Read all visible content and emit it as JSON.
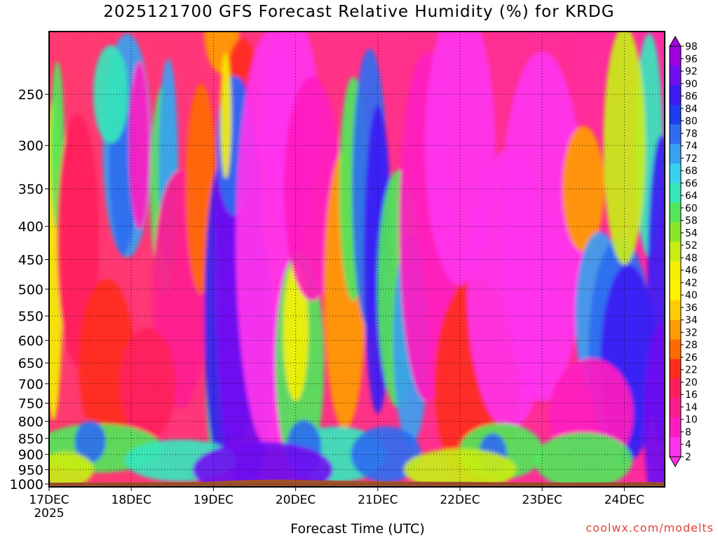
{
  "chart_data": {
    "type": "heatmap",
    "title": "2025121700 GFS Forecast Relative Humidity (%) for KRDG",
    "xlabel": "Forecast Time (UTC)",
    "ylabel": "",
    "credit": "coolwx.com/modelts",
    "x_ticks": [
      "17DEC",
      "18DEC",
      "19DEC",
      "20DEC",
      "21DEC",
      "22DEC",
      "23DEC",
      "24DEC"
    ],
    "x_year_label": "2025",
    "y_ticks": [
      250,
      300,
      350,
      400,
      450,
      500,
      550,
      600,
      650,
      700,
      750,
      800,
      850,
      900,
      950,
      1000
    ],
    "y_scale": "log-pressure (inverted)",
    "ylim": [
      1010,
      200
    ],
    "xlim": [
      "17DEC 00Z",
      "24DEC 15Z"
    ],
    "grid": true,
    "colorbar": {
      "position": "right",
      "labels": [
        98,
        96,
        92,
        90,
        86,
        84,
        80,
        78,
        74,
        72,
        68,
        66,
        64,
        60,
        58,
        54,
        52,
        48,
        46,
        42,
        40,
        36,
        34,
        32,
        28,
        26,
        22,
        20,
        16,
        14,
        10,
        8,
        4,
        2
      ],
      "colors": [
        "#a000e0",
        "#7010f0",
        "#3c1cf4",
        "#1e3cf0",
        "#2f6cf0",
        "#3aa0f0",
        "#38d2ee",
        "#36e6bc",
        "#52e65a",
        "#8ae62a",
        "#c8ee14",
        "#f4f000",
        "#fff200",
        "#ffcc00",
        "#ff9c00",
        "#ff6a00",
        "#ff2e1e",
        "#ff1f5c",
        "#ff1c90",
        "#ff1cc0",
        "#ff33ee"
      ]
    }
  }
}
